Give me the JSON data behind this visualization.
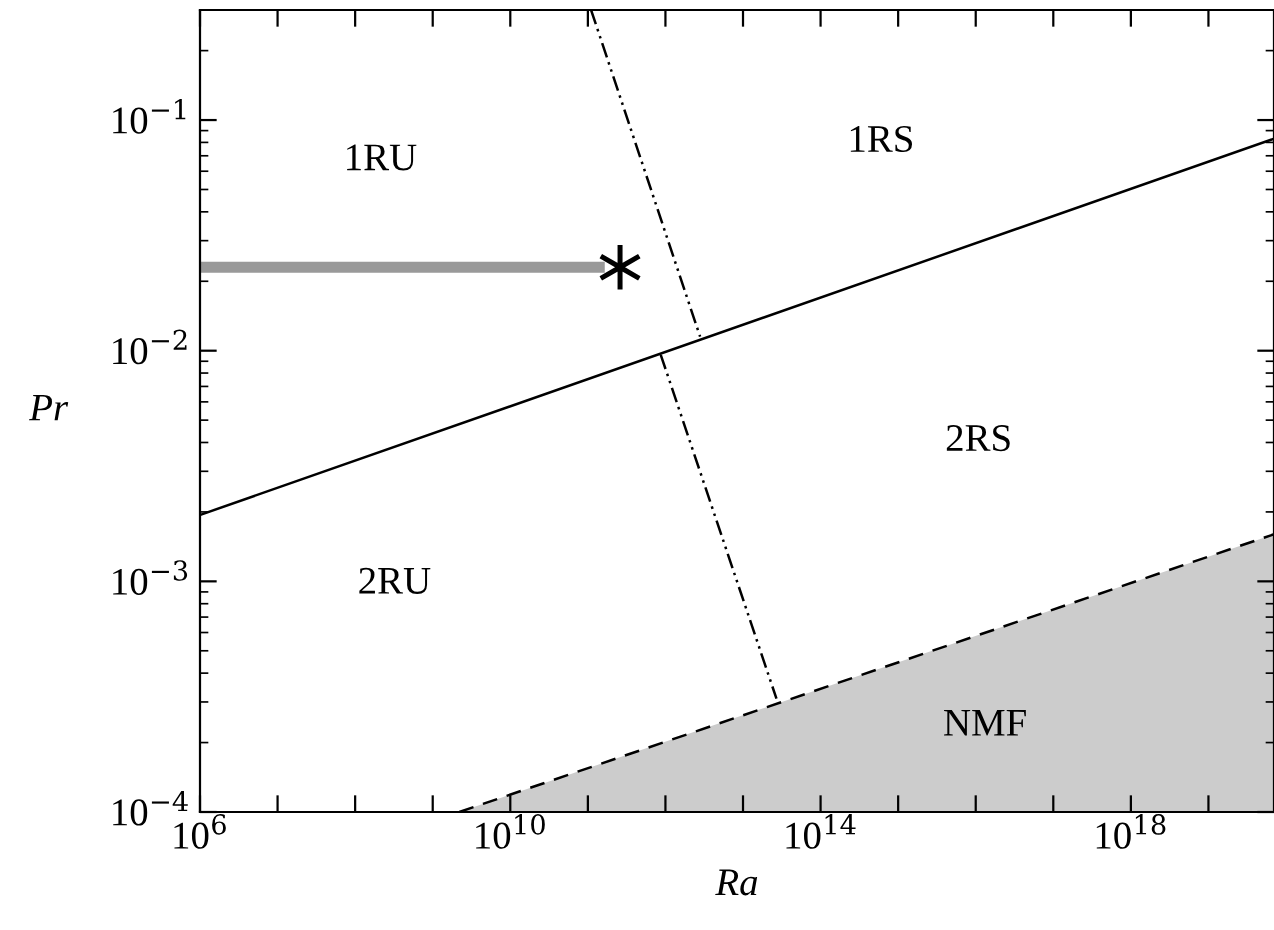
{
  "chart_data": {
    "type": "line",
    "xlabel": "Ra",
    "ylabel": "Pr",
    "log": "xy",
    "grid": false,
    "legend": false,
    "xlim": [
      1000000.0,
      7e+19
    ],
    "ylim": [
      0.0001,
      0.3
    ],
    "xticks": [
      {
        "value": 1000000.0,
        "label": "10$^{6}$"
      },
      {
        "value": 10000000.0,
        "label": null
      },
      {
        "value": 100000000.0,
        "label": null
      },
      {
        "value": 1000000000.0,
        "label": null
      },
      {
        "value": 10000000000.0,
        "label": "10$^{10}$"
      },
      {
        "value": 100000000000.0,
        "label": null
      },
      {
        "value": 1000000000000.0,
        "label": null
      },
      {
        "value": 10000000000000.0,
        "label": null
      },
      {
        "value": 100000000000000.0,
        "label": "10$^{14}$"
      },
      {
        "value": 1000000000000000.0,
        "label": null
      },
      {
        "value": 1e+16,
        "label": null
      },
      {
        "value": 1e+17,
        "label": null
      },
      {
        "value": 1e+18,
        "label": "10$^{18}$"
      },
      {
        "value": 1e+19,
        "label": null
      }
    ],
    "yticks": [
      {
        "value": 0.0001,
        "label": "10$^{−4}$"
      },
      {
        "value": 0.001,
        "label": "10$^{−3}$"
      },
      {
        "value": 0.01,
        "label": "10$^{−2}$"
      },
      {
        "value": 0.1,
        "label": "10$^{−1}$"
      }
    ],
    "series": [
      {
        "type": "area",
        "color": "#cccccc",
        "line_style": "dashed",
        "x": [
          2200000000.0,
          7e+19
        ],
        "values": [
          0.0001,
          0.0016
        ]
      },
      {
        "color": "#000000",
        "line_style": "solid",
        "x": [
          1000000.0,
          7e+19
        ],
        "values": [
          0.00194,
          0.083
        ]
      },
      {
        "color": "#000000",
        "line_style": "dashdot",
        "x": [
          110000000000.0,
          2800000000000.0
        ],
        "values": [
          0.3,
          0.0115
        ]
      },
      {
        "color": "#000000",
        "line_style": "dashdot",
        "x": [
          870000000000.0,
          27000000000000.0
        ],
        "values": [
          0.0096,
          0.00031
        ]
      },
      {
        "color": "#999999",
        "line_style": "solid",
        "x": [
          1000000.0,
          140000000000.0
        ],
        "values": [
          0.023,
          0.023
        ]
      },
      {
        "type": "scatter",
        "color": "#000000",
        "marker": "cross",
        "x": [
          260000000000.0
        ],
        "values": [
          0.023
        ]
      }
    ],
    "annotations": [
      "1RU",
      "1RS",
      "2RU",
      "2RS",
      "NMF"
    ]
  }
}
